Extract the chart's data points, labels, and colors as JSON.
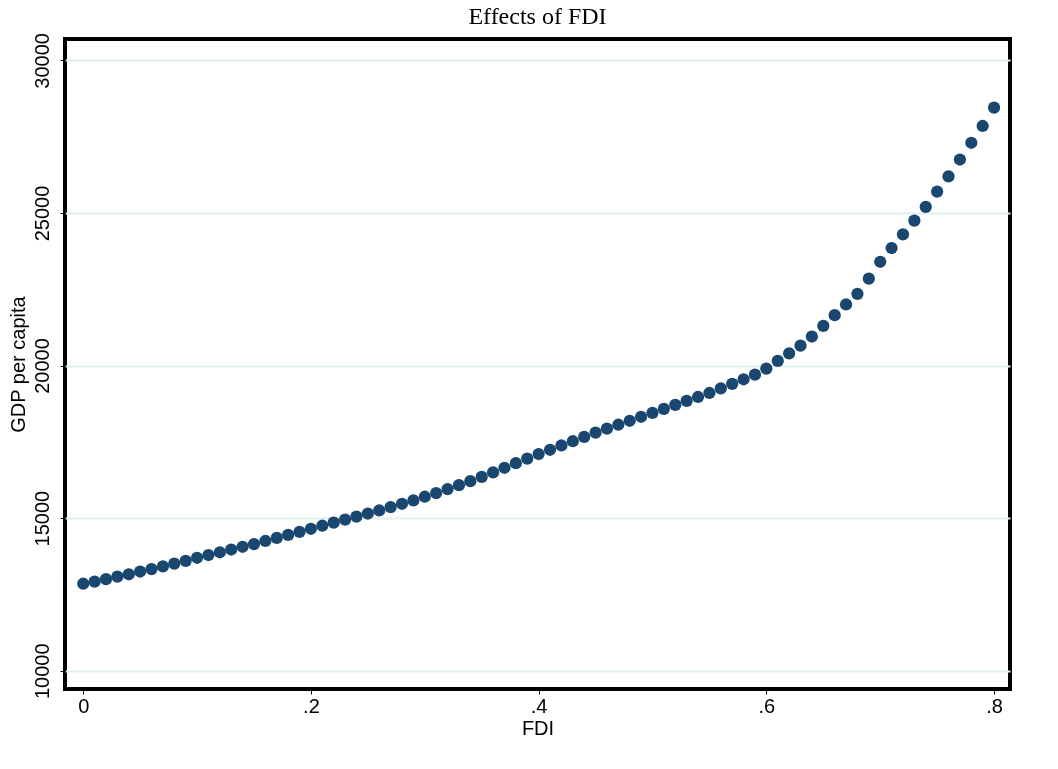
{
  "chart_data": {
    "type": "scatter",
    "title": "Effects of FDI",
    "xlabel": "FDI",
    "ylabel": "GDP per capita",
    "x": [
      0,
      0.01,
      0.02,
      0.03,
      0.04,
      0.05,
      0.06,
      0.07,
      0.08,
      0.09,
      0.1,
      0.11,
      0.12,
      0.13,
      0.14,
      0.15,
      0.16,
      0.17,
      0.18,
      0.19,
      0.2,
      0.21,
      0.22,
      0.23,
      0.24,
      0.25,
      0.26,
      0.27,
      0.28,
      0.29,
      0.3,
      0.31,
      0.32,
      0.33,
      0.34,
      0.35,
      0.36,
      0.37,
      0.38,
      0.39,
      0.4,
      0.41,
      0.42,
      0.43,
      0.44,
      0.45,
      0.46,
      0.47,
      0.48,
      0.49,
      0.5,
      0.51,
      0.52,
      0.53,
      0.54,
      0.55,
      0.56,
      0.57,
      0.58,
      0.59,
      0.6,
      0.61,
      0.62,
      0.63,
      0.64,
      0.65,
      0.66,
      0.67,
      0.68,
      0.69,
      0.7,
      0.71,
      0.72,
      0.73,
      0.74,
      0.75,
      0.76,
      0.77,
      0.78,
      0.79,
      0.8
    ],
    "series": [
      {
        "color": "#1a476f",
        "values": [
          12850,
          12920,
          13000,
          13080,
          13160,
          13250,
          13330,
          13420,
          13510,
          13600,
          13700,
          13790,
          13880,
          13970,
          14060,
          14150,
          14250,
          14350,
          14450,
          14550,
          14650,
          14750,
          14850,
          14950,
          15050,
          15150,
          15250,
          15360,
          15470,
          15580,
          15700,
          15820,
          15950,
          16080,
          16210,
          16350,
          16500,
          16650,
          16800,
          16950,
          17100,
          17240,
          17380,
          17520,
          17660,
          17800,
          17930,
          18060,
          18190,
          18320,
          18450,
          18580,
          18710,
          18840,
          18970,
          19100,
          19250,
          19400,
          19550,
          19700,
          19900,
          20150,
          20400,
          20650,
          20950,
          21300,
          21650,
          22000,
          22350,
          22850,
          23400,
          23850,
          24300,
          24750,
          25200,
          25700,
          26200,
          26750,
          27300,
          27850,
          28450
        ]
      }
    ],
    "xlim": [
      -0.016,
      0.814
    ],
    "ylim": [
      9400,
      30700
    ],
    "xticks": [
      0,
      {
        "value": 0.2,
        "label": ".2"
      },
      {
        "value": 0.4,
        "label": ".4"
      },
      {
        "value": 0.6,
        "label": ".6"
      },
      {
        "value": 0.8,
        "label": ".8"
      }
    ],
    "yticks": [
      10000,
      15000,
      20000,
      25000,
      30000
    ],
    "grid": "y",
    "marker": "circle",
    "legend": false
  }
}
